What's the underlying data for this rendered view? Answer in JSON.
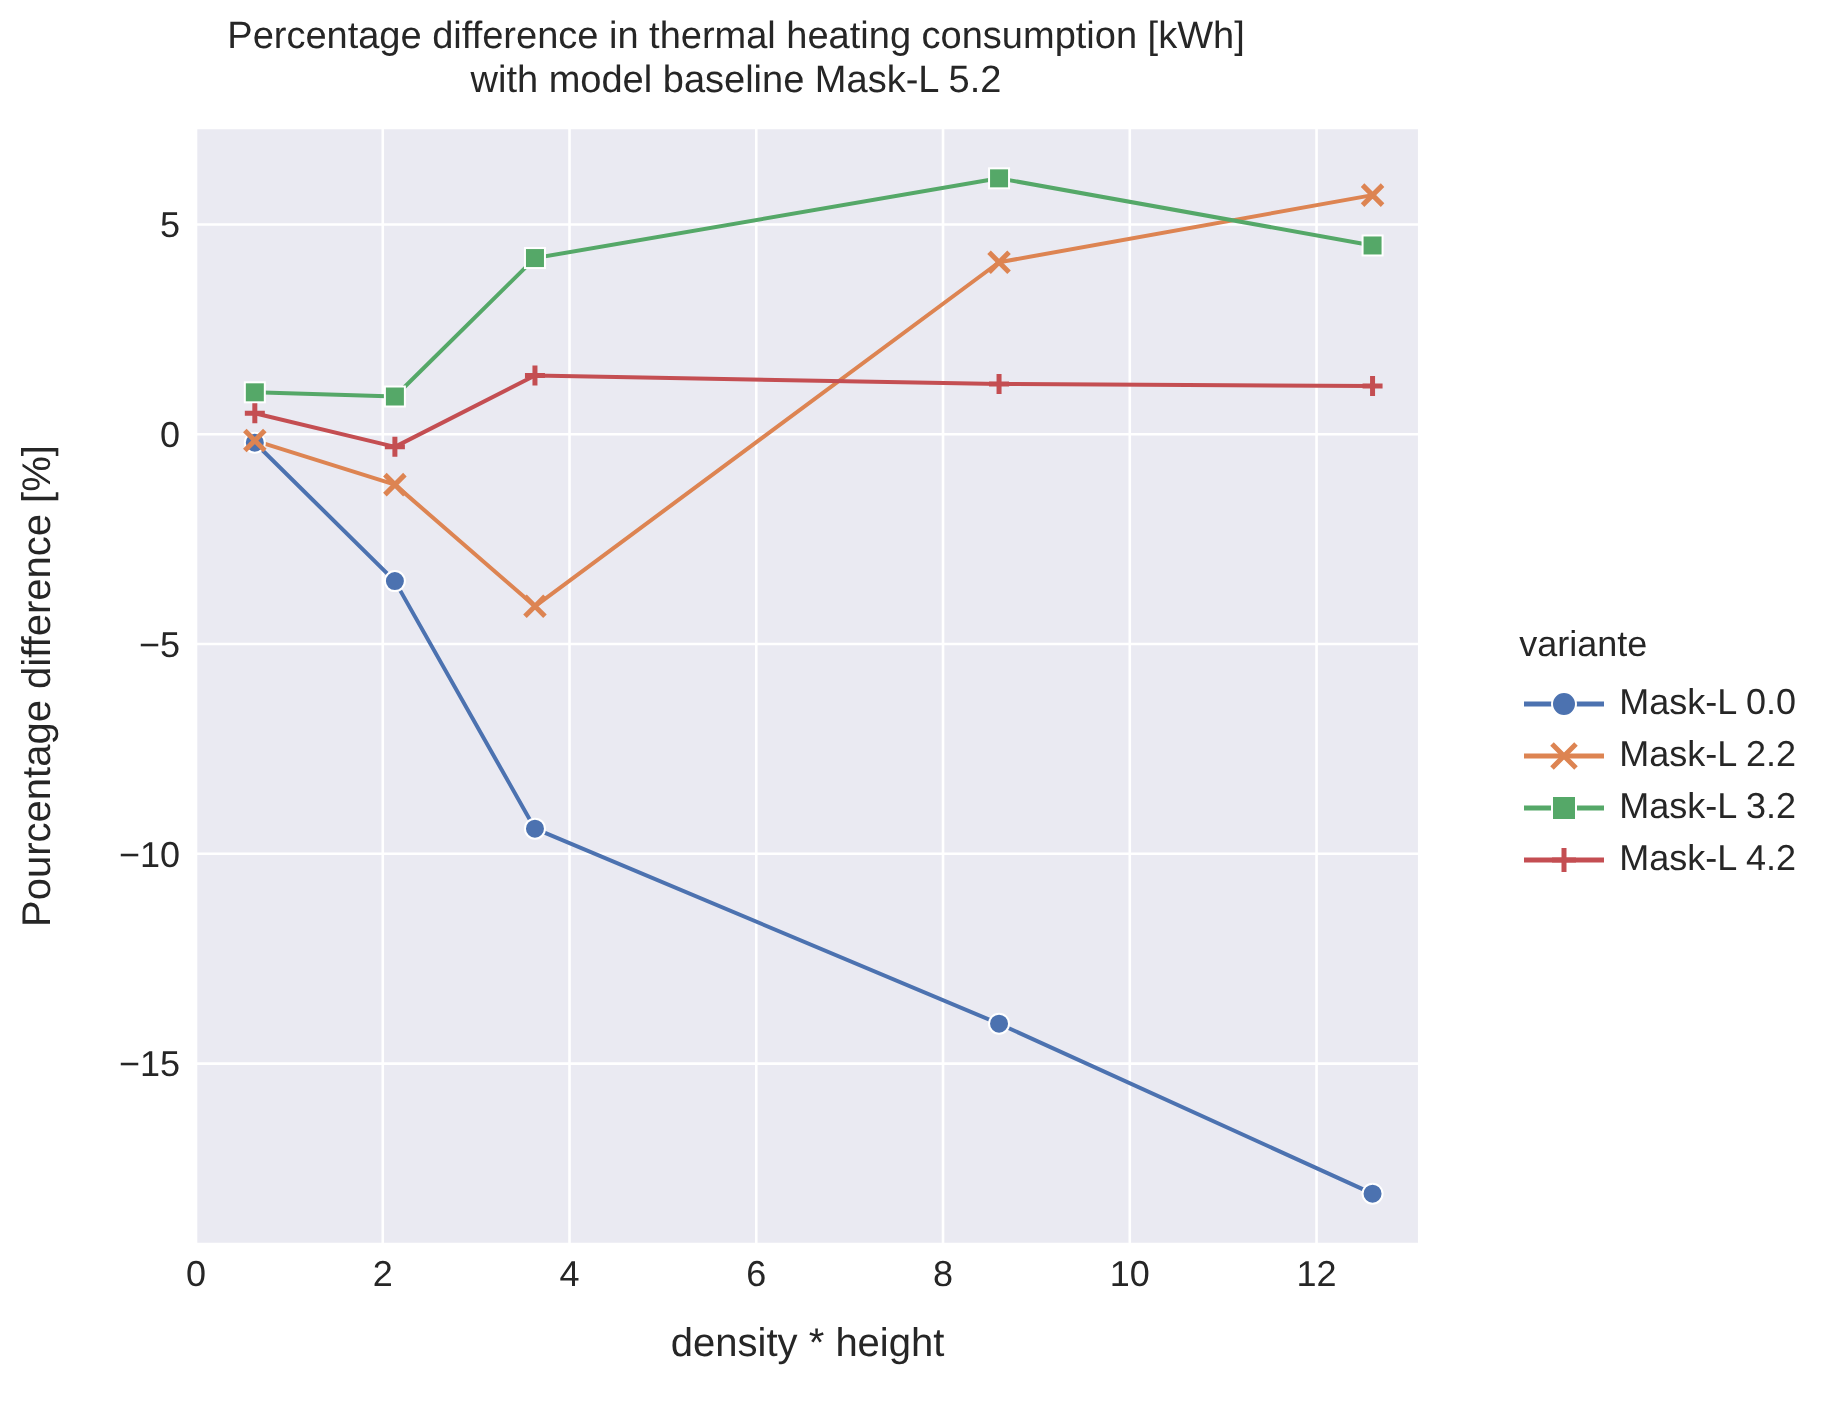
{
  "chart_data": {
    "type": "line",
    "title": "Percentage difference in thermal heating consumption [kWh]\nwith model baseline Mask-L 5.2",
    "xlabel": "density * height",
    "ylabel": "Pourcentage difference [%]",
    "legend_title": "variante",
    "x": [
      0.63,
      2.13,
      3.63,
      8.6,
      12.6
    ],
    "series": [
      {
        "name": "Mask-L 0.0",
        "color": "#4c72b0",
        "marker": "circle",
        "values": [
          -0.2,
          -3.5,
          -9.4,
          -14.05,
          -18.1
        ]
      },
      {
        "name": "Mask-L 2.2",
        "color": "#dd8452",
        "marker": "cross",
        "values": [
          -0.15,
          -1.2,
          -4.1,
          4.1,
          5.7
        ]
      },
      {
        "name": "Mask-L 3.2",
        "color": "#55a868",
        "marker": "square",
        "values": [
          1.0,
          0.9,
          4.2,
          6.1,
          4.5
        ]
      },
      {
        "name": "Mask-L 4.2",
        "color": "#c44e52",
        "marker": "plus",
        "values": [
          0.5,
          -0.3,
          1.4,
          1.2,
          1.15
        ]
      }
    ],
    "xlim": [
      0,
      13.1
    ],
    "xticks": [
      0,
      2,
      4,
      6,
      8,
      10,
      12
    ],
    "ylim": [
      -19.3,
      7.3
    ],
    "yticks": [
      -15,
      -10,
      -5,
      0,
      5
    ],
    "grid": true,
    "legend": "right",
    "line_style": "solid"
  }
}
